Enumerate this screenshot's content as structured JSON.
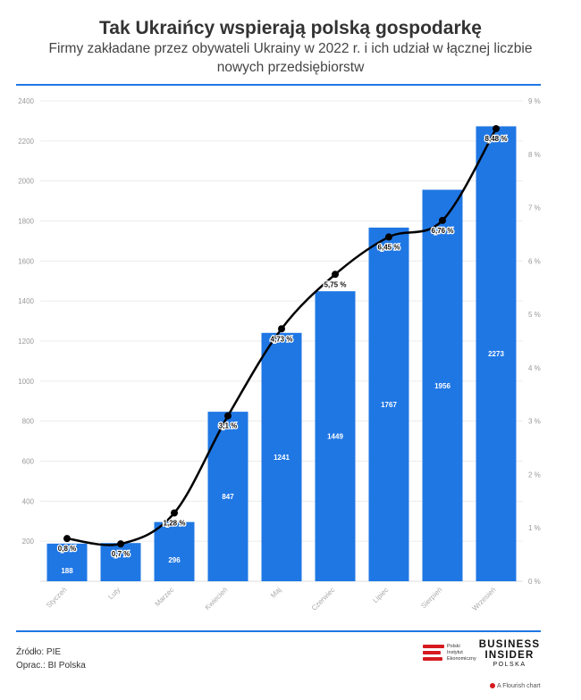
{
  "header": {
    "title": "Tak Ukraińcy wspierają polską gospodarkę",
    "subtitle": "Firmy zakładane przez obywateli Ukrainy w 2022 r. i ich udział w łącznej liczbie nowych przedsiębiorstw"
  },
  "chart_data": {
    "type": "bar",
    "categories": [
      "Styczeń",
      "Luty",
      "Marzec",
      "Kwiecień",
      "Maj",
      "Czerwiec",
      "Lipiec",
      "Sierpień",
      "Wrzesień"
    ],
    "series": [
      {
        "type": "bar",
        "axis": "left",
        "values": [
          188,
          191,
          296,
          847,
          1241,
          1449,
          1767,
          1956,
          2273
        ],
        "labels": [
          "188",
          "",
          "296",
          "847",
          "1241",
          "1449",
          "1767",
          "1956",
          "2273"
        ],
        "color": "#1f77e4"
      },
      {
        "type": "line",
        "axis": "right",
        "values": [
          0.8,
          0.7,
          1.28,
          3.1,
          4.73,
          5.75,
          6.45,
          6.76,
          8.48
        ],
        "labels": [
          "0,8 %",
          "0,7 %",
          "1,28 %",
          "3,1 %",
          "4,73 %",
          "5,75 %",
          "6,45 %",
          "6,76 %",
          "8,48 %"
        ],
        "color": "#000000"
      }
    ],
    "y_left": {
      "range": [
        0,
        2400
      ],
      "ticks": [
        "200",
        "400",
        "600",
        "800",
        "1000",
        "1200",
        "1400",
        "1600",
        "1800",
        "2000",
        "2200",
        "2400"
      ]
    },
    "y_right": {
      "range": [
        0,
        9
      ],
      "ticks": [
        "0 %",
        "1 %",
        "2 %",
        "3 %",
        "4 %",
        "5 %",
        "6 %",
        "7 %",
        "8 %",
        "9 %"
      ]
    },
    "grid": true,
    "legend": "none"
  },
  "footer": {
    "source": "Źródło: PIE",
    "author": "Oprac.: BI Polska",
    "pie_logo_lines": [
      "Polski",
      "Instytut",
      "Ekonomiczny"
    ],
    "brand_line1": "BUSINESS",
    "brand_line2": "INSIDER",
    "brand_line3": "POLSKA",
    "flourish": "A Flourish chart"
  }
}
